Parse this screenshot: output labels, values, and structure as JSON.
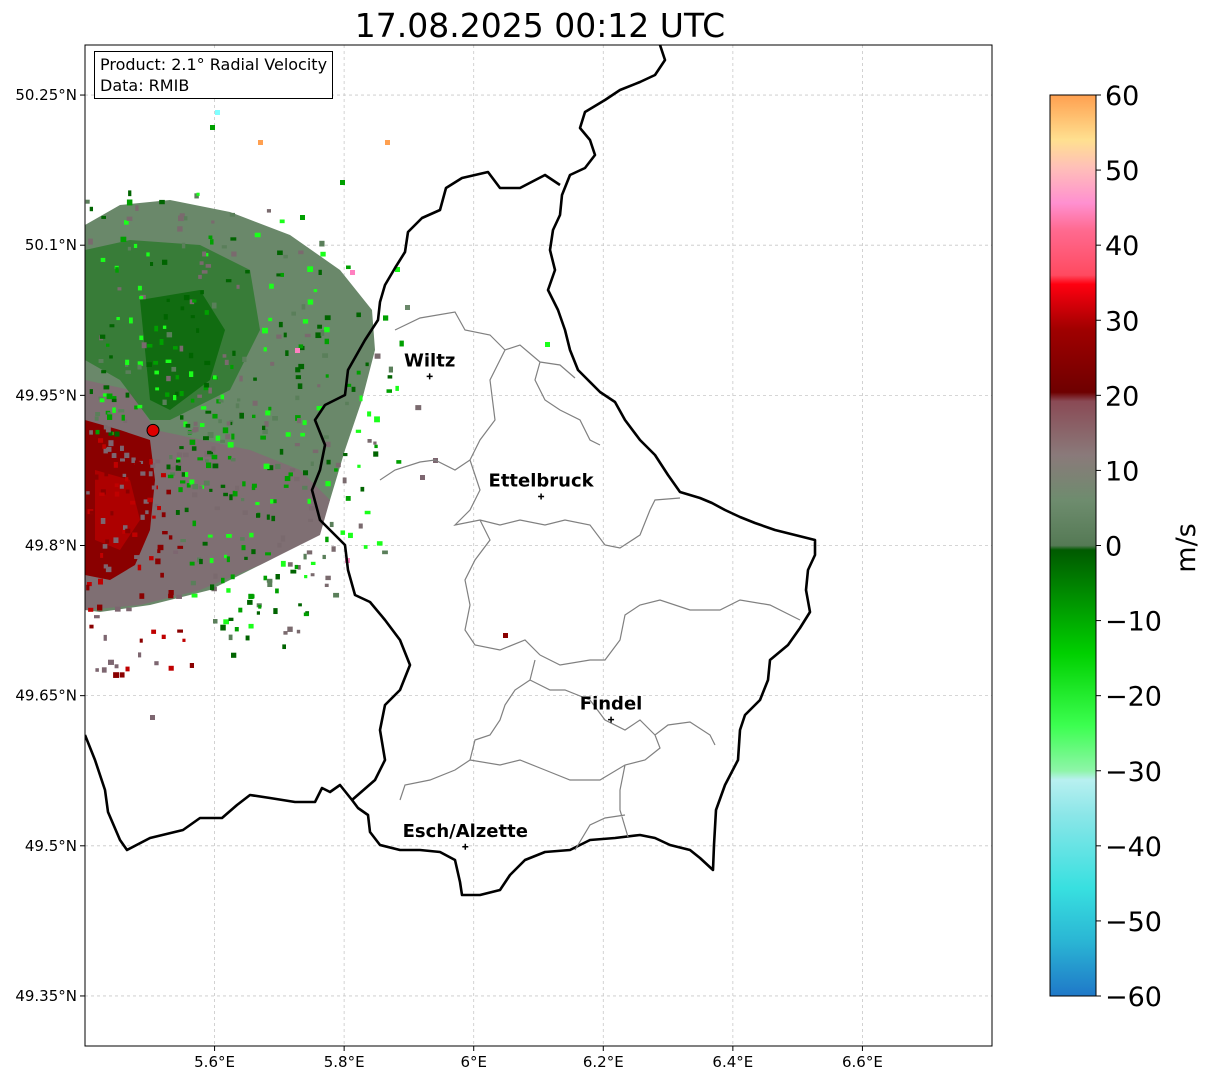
{
  "title": "17.08.2025 00:12 UTC",
  "info_box": {
    "product": "Product: 2.1° Radial Velocity",
    "data": "Data: RMIB"
  },
  "map": {
    "lon_range": [
      5.4,
      6.8
    ],
    "lat_range": [
      49.3,
      50.3
    ],
    "lon_ticks": [
      "5.6°E",
      "5.8°E",
      "6°E",
      "6.2°E",
      "6.4°E",
      "6.6°E"
    ],
    "lat_ticks": [
      "50.25°N",
      "50.1°N",
      "49.95°N",
      "49.8°N",
      "49.65°N",
      "49.5°N",
      "49.35°N"
    ],
    "grid": true,
    "radar_site": {
      "lon": 5.505,
      "lat": 49.915,
      "color": "#e00000"
    },
    "cities": [
      {
        "name": "Wiltz",
        "lon": 5.932,
        "lat": 49.969
      },
      {
        "name": "Ettelbruck",
        "lon": 6.104,
        "lat": 49.849
      },
      {
        "name": "Findel",
        "lon": 6.212,
        "lat": 49.626
      },
      {
        "name": "Esch/Alzette",
        "lon": 5.987,
        "lat": 49.499
      }
    ]
  },
  "colorbar": {
    "label": "m/s",
    "range": [
      -60,
      60
    ],
    "ticks": [
      "60",
      "50",
      "40",
      "30",
      "20",
      "10",
      "0",
      "−10",
      "−20",
      "−30",
      "−40",
      "−50",
      "−60"
    ],
    "colors": [
      "#1f78c8",
      "#2ab5d4",
      "#38e0e0",
      "#8ae6e8",
      "#b8f0f0",
      "#8ef5a8",
      "#3cff50",
      "#00e000",
      "#00b400",
      "#008c00",
      "#006400",
      "#557a55",
      "#6e8c6e",
      "#8a7a7a",
      "#8a5a6a",
      "#6e0000",
      "#a00000",
      "#d80000",
      "#ff0010",
      "#ff5070",
      "#ff80c0",
      "#ffb0b8",
      "#ffe090",
      "#ffc080",
      "#ffa050"
    ]
  }
}
